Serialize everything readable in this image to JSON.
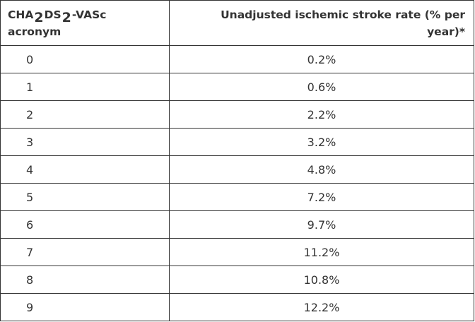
{
  "table": {
    "header": {
      "col1": {
        "part1": "CHA",
        "sub1": "2",
        "part2": "DS",
        "sub2": "2",
        "part3": "-VASc",
        "line2": "acronym"
      },
      "col2": {
        "line1": "Unadjusted ischemic stroke rate (% per",
        "line2": "year)*"
      }
    },
    "rows": [
      {
        "score": "0",
        "rate": "0.2%"
      },
      {
        "score": "1",
        "rate": "0.6%"
      },
      {
        "score": "2",
        "rate": "2.2%"
      },
      {
        "score": "3",
        "rate": "3.2%"
      },
      {
        "score": "4",
        "rate": "4.8%"
      },
      {
        "score": "5",
        "rate": "7.2%"
      },
      {
        "score": "6",
        "rate": "9.7%"
      },
      {
        "score": "7",
        "rate": "11.2%"
      },
      {
        "score": "8",
        "rate": "10.8%"
      },
      {
        "score": "9",
        "rate": "12.2%"
      }
    ]
  }
}
